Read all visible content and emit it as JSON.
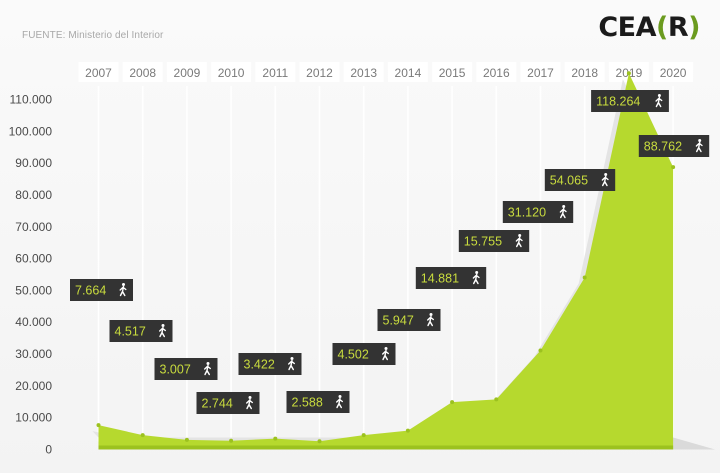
{
  "source_text": "FUENTE: Ministerio del Interior",
  "logo": {
    "prefix": "CEA",
    "open": "(",
    "letter": "R",
    "close": ")"
  },
  "colors": {
    "area": "#b6d92e",
    "area_dark": "#9cc21f",
    "area_shadow": "#dadada",
    "label_bg": "#333333",
    "label_text": "#c9dc3e",
    "year_box": "#ffffff",
    "brand_green": "#6b9b1f"
  },
  "chart_data": {
    "type": "area",
    "title": "",
    "xlabel": "",
    "ylabel": "",
    "x": [
      "2007",
      "2008",
      "2009",
      "2010",
      "2011",
      "2012",
      "2013",
      "2014",
      "2015",
      "2016",
      "2017",
      "2018",
      "2019",
      "2020"
    ],
    "series": [
      {
        "values": [
          7664,
          4517,
          3007,
          2744,
          3422,
          2588,
          4502,
          5947,
          14881,
          15755,
          31120,
          54065,
          118264,
          88762
        ]
      }
    ],
    "data_labels": [
      "7.664",
      "4.517",
      "3.007",
      "2.744",
      "3.422",
      "2.588",
      "4.502",
      "5.947",
      "14.881",
      "15.755",
      "31.120",
      "54.065",
      "118.264",
      "88.762"
    ],
    "data_label_icon": "person-walking-icon",
    "ylim": [
      0,
      110000
    ],
    "yticks": [
      "0",
      "10.000",
      "20.000",
      "30.000",
      "40.000",
      "50.000",
      "60.000",
      "70.000",
      "80.000",
      "90.000",
      "100.000",
      "110.000"
    ],
    "grid": "vertical",
    "legend": "none"
  }
}
